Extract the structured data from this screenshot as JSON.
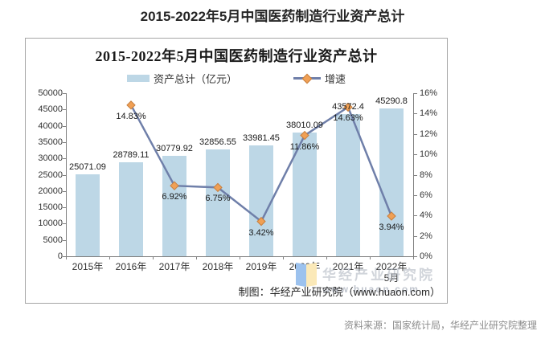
{
  "page_title": "2015-2022年5月中国医药制造行业资产总计",
  "chart": {
    "title": "2015-2022年5月中国医药制造行业资产总计",
    "legend": [
      {
        "label": "资产总计（亿元）",
        "marker": "bar-swatch",
        "color": "#BDD7E6"
      },
      {
        "label": "增速",
        "marker": "line-diamond",
        "line_color": "#6F7FA9",
        "marker_color": "#F0A055"
      }
    ],
    "credit": "制图：华经产业研究院（www.huaon.com）",
    "watermark": {
      "name": "华经产业研究院",
      "url": "www.huaon.com"
    }
  },
  "chart_data": {
    "type": "bar",
    "title": "2015-2022年5月中国医药制造行业资产总计",
    "categories": [
      "2015年",
      "2016年",
      "2017年",
      "2018年",
      "2019年",
      "2020年",
      "2021年",
      "2022年\n5月"
    ],
    "series": [
      {
        "name": "资产总计（亿元）",
        "type": "bar",
        "axis": "left",
        "color": "#BDD7E6",
        "values": [
          25071.09,
          28789.11,
          30779.92,
          32856.55,
          33981.45,
          38010.09,
          43572.4,
          45290.8
        ],
        "labels": [
          "25071.09",
          "28789.11",
          "30779.92",
          "32856.55",
          "33981.45",
          "38010.09",
          "43572.4",
          "45290.8"
        ]
      },
      {
        "name": "增速",
        "type": "line",
        "axis": "right",
        "color": "#6F7FA9",
        "marker": "diamond",
        "marker_color": "#F0A055",
        "values": [
          null,
          14.83,
          6.92,
          6.75,
          3.42,
          11.86,
          14.63,
          3.94
        ],
        "labels": [
          null,
          "14.83%",
          "6.92%",
          "6.75%",
          "3.42%",
          "11.86%",
          "14.63%",
          "3.94%"
        ]
      }
    ],
    "left_axis": {
      "min": 0,
      "max": 50000,
      "step": 5000
    },
    "right_axis": {
      "min": 0,
      "max": 16,
      "step": 2,
      "suffix": "%"
    },
    "grid": false,
    "legend_position": "top"
  },
  "footer": {
    "source": "资料来源：国家统计局，华经产业研究院整理"
  }
}
